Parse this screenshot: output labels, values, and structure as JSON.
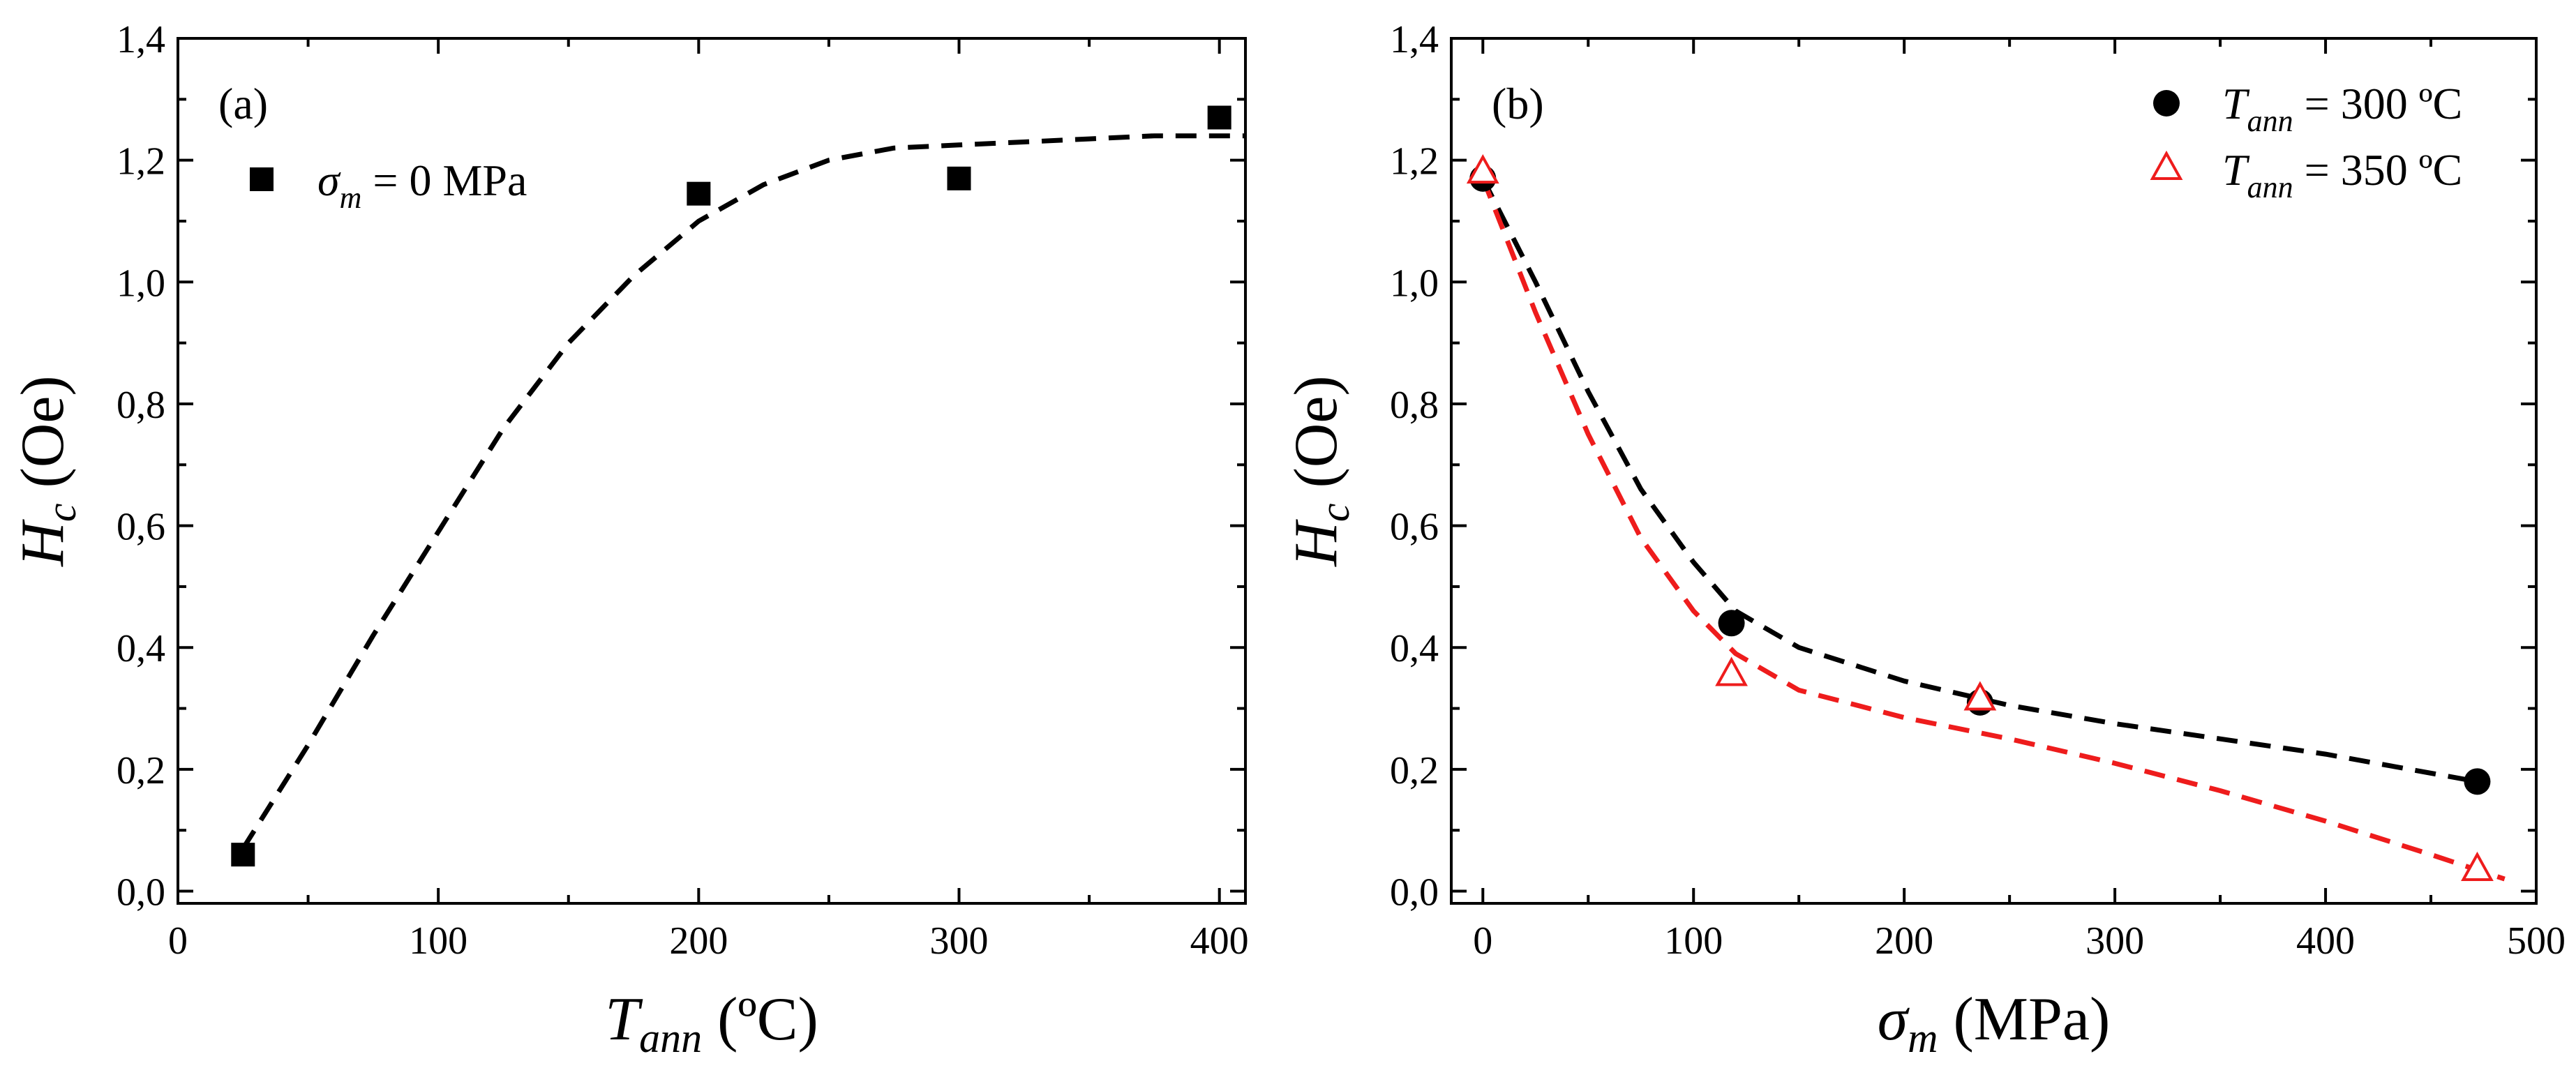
{
  "colors": {
    "black": "#000000",
    "red": "#ee1c1c"
  },
  "chart_data": [
    {
      "type": "scatter",
      "panel": "(a)",
      "title": "",
      "xlabel": {
        "main": "T",
        "sub": "ann",
        "unit": " (ºC)"
      },
      "ylabel": {
        "main": "H",
        "sub": "c",
        "unit": " (Oe)"
      },
      "xlim": [
        0,
        410
      ],
      "ylim": [
        -0.02,
        1.4
      ],
      "xticks": [
        0,
        100,
        200,
        300,
        400
      ],
      "xtick_labels": [
        "0",
        "100",
        "200",
        "300",
        "400"
      ],
      "yticks": [
        0.0,
        0.2,
        0.4,
        0.6,
        0.8,
        1.0,
        1.2,
        1.4
      ],
      "ytick_labels": [
        "0,0",
        "0,2",
        "0,4",
        "0,6",
        "0,8",
        "1,0",
        "1,2",
        "1,4"
      ],
      "legend": {
        "location": "upper-left",
        "entries": [
          {
            "marker": "square",
            "main": "σ",
            "sub": "m",
            "rest": " = 0 MPa"
          }
        ]
      },
      "series": [
        {
          "name": "σm = 0 MPa",
          "marker": "square",
          "color": "#000000",
          "x": [
            25,
            200,
            300,
            400
          ],
          "y": [
            0.06,
            1.145,
            1.17,
            1.27
          ]
        },
        {
          "name": "fit",
          "style": "dashed",
          "color": "#000000",
          "x": [
            25,
            50,
            75,
            100,
            125,
            150,
            175,
            200,
            225,
            250,
            275,
            300,
            325,
            350,
            375,
            400,
            410
          ],
          "y": [
            0.07,
            0.24,
            0.42,
            0.59,
            0.76,
            0.9,
            1.01,
            1.1,
            1.16,
            1.2,
            1.22,
            1.225,
            1.23,
            1.235,
            1.24,
            1.24,
            1.24
          ]
        }
      ]
    },
    {
      "type": "scatter",
      "panel": "(b)",
      "title": "",
      "xlabel": {
        "main": "σ",
        "sub": "m",
        "unit": " (MPa)"
      },
      "ylabel": {
        "main": "H",
        "sub": "c",
        "unit": " (Oe)"
      },
      "xlim": [
        -15,
        500
      ],
      "ylim": [
        -0.02,
        1.4
      ],
      "xticks": [
        0,
        100,
        200,
        300,
        400,
        500
      ],
      "xtick_labels": [
        "0",
        "100",
        "200",
        "300",
        "400",
        "500"
      ],
      "yticks": [
        0.0,
        0.2,
        0.4,
        0.6,
        0.8,
        1.0,
        1.2,
        1.4
      ],
      "ytick_labels": [
        "0,0",
        "0,2",
        "0,4",
        "0,6",
        "0,8",
        "1,0",
        "1,2",
        "1,4"
      ],
      "legend": {
        "location": "upper-right",
        "entries": [
          {
            "marker": "circle",
            "main": "T",
            "sub": "ann",
            "rest": " = 300 ºC"
          },
          {
            "marker": "triangle",
            "main": "T",
            "sub": "ann",
            "rest": " = 350 ºC"
          }
        ]
      },
      "series": [
        {
          "name": "Tann = 300 ºC",
          "marker": "circle",
          "color": "#000000",
          "x": [
            0,
            118,
            236,
            472
          ],
          "y": [
            1.17,
            0.44,
            0.31,
            0.18
          ]
        },
        {
          "name": "Tann = 350 ºC",
          "marker": "triangle",
          "color": "#ee1c1c",
          "x": [
            0,
            118,
            236,
            472
          ],
          "y": [
            1.18,
            0.355,
            0.315,
            0.035
          ]
        },
        {
          "name": "fit 300 ºC",
          "style": "dashed",
          "color": "#000000",
          "x": [
            0,
            25,
            50,
            75,
            100,
            120,
            150,
            200,
            250,
            300,
            350,
            400,
            472
          ],
          "y": [
            1.17,
            1.0,
            0.82,
            0.66,
            0.54,
            0.46,
            0.4,
            0.345,
            0.305,
            0.275,
            0.25,
            0.225,
            0.18
          ]
        },
        {
          "name": "fit 350 ºC",
          "style": "dashed",
          "color": "#ee1c1c",
          "x": [
            0,
            25,
            50,
            75,
            100,
            120,
            150,
            200,
            250,
            300,
            350,
            400,
            450,
            485
          ],
          "y": [
            1.17,
            0.95,
            0.75,
            0.58,
            0.46,
            0.39,
            0.33,
            0.285,
            0.25,
            0.21,
            0.165,
            0.115,
            0.06,
            0.02
          ]
        }
      ]
    }
  ]
}
